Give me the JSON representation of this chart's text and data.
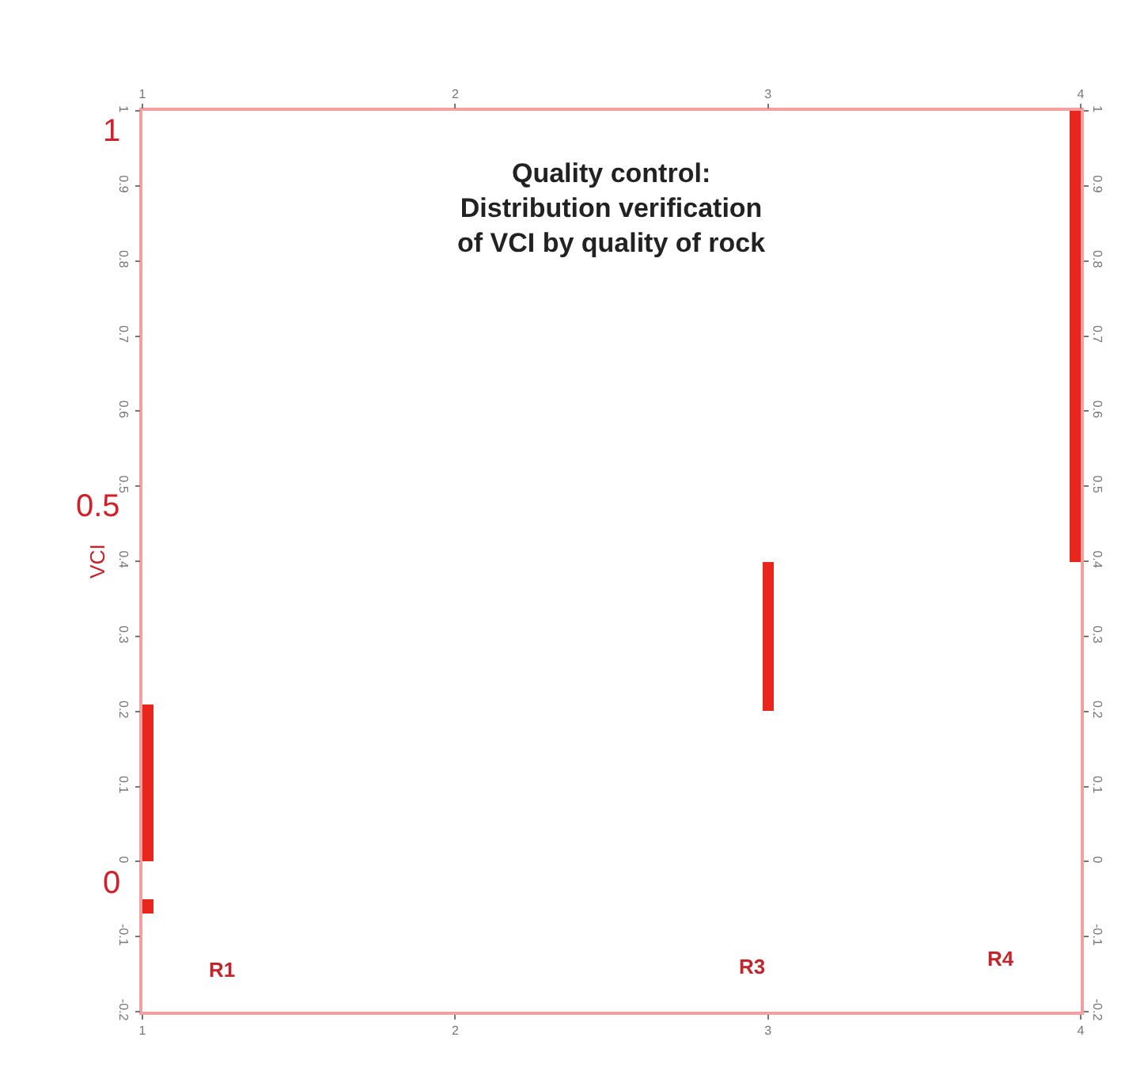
{
  "chart_data": {
    "type": "bar",
    "title": "Quality control:\nDistribution verification\nof VCI by quality of rock",
    "ylabel": "VCI",
    "series": [
      {
        "color": "#e8261e",
        "x": [
          1,
          3,
          4
        ],
        "base": [
          0,
          0.2,
          0.4
        ],
        "values": [
          0.21,
          0.2,
          0.6
        ]
      },
      {
        "color": "#e8261e",
        "x": [
          1
        ],
        "base": [
          -0.07
        ],
        "values": [
          0.02
        ]
      }
    ],
    "xlim": [
      1,
      4
    ],
    "xticks": [
      1,
      2,
      3,
      4
    ],
    "x2lim": [
      1,
      4
    ],
    "x2ticks": [
      1,
      2,
      3,
      4
    ],
    "ylim": [
      -0.2,
      1
    ],
    "yticks": [
      -0.2,
      -0.1,
      0,
      0.1,
      0.2,
      0.3,
      0.4,
      0.5,
      0.6,
      0.7,
      0.8,
      0.9,
      1
    ],
    "y2lim": [
      -0.2,
      1
    ],
    "y2ticks": [
      -0.2,
      -0.1,
      0,
      0.1,
      0.2,
      0.3,
      0.4,
      0.5,
      0.6,
      0.7,
      0.8,
      0.9,
      1
    ],
    "annotations": [
      "R1",
      "R3",
      "R4",
      "1",
      "0.5",
      "0"
    ],
    "legend": false
  }
}
